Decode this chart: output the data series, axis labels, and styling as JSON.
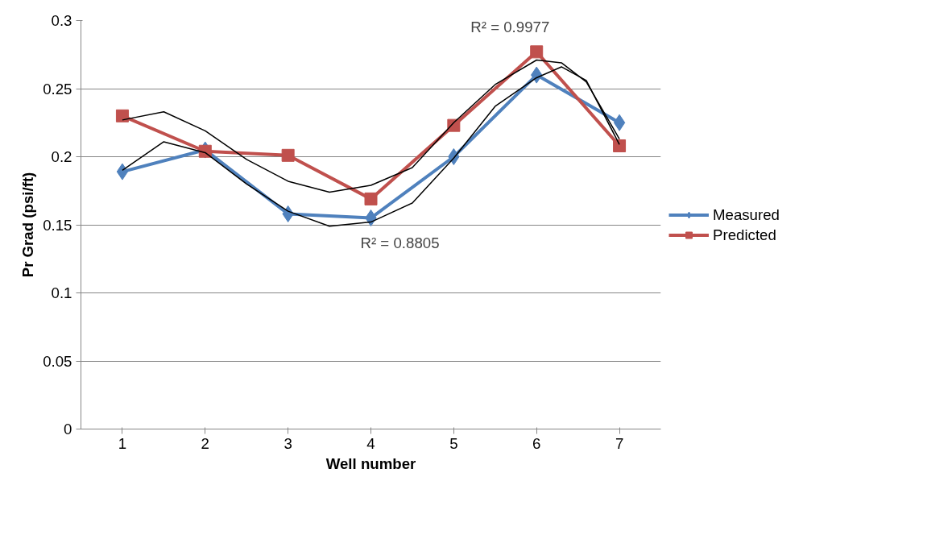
{
  "chart_data": {
    "type": "line",
    "xlabel": "Well number",
    "ylabel": "Pr Grad (psi/ft)",
    "x": [
      1,
      2,
      3,
      4,
      5,
      6,
      7
    ],
    "xlim": [
      0.5,
      7.5
    ],
    "xticks": [
      1,
      2,
      3,
      4,
      5,
      6,
      7
    ],
    "ylim": [
      0,
      0.3
    ],
    "yticks": [
      0,
      0.05,
      0.1,
      0.15,
      0.2,
      0.25,
      0.3
    ],
    "grid": "y",
    "legend": "right",
    "series": [
      {
        "name": "Measured",
        "color": "#4f81bd",
        "marker": "diamond",
        "values": [
          0.189,
          0.205,
          0.158,
          0.155,
          0.2,
          0.26,
          0.225
        ]
      },
      {
        "name": "Predicted",
        "color": "#c0504d",
        "marker": "square",
        "values": [
          0.23,
          0.204,
          0.201,
          0.169,
          0.223,
          0.277,
          0.208
        ]
      },
      {
        "type": "line",
        "color": "#000000",
        "marker": "none",
        "x": [
          1,
          1.5,
          2,
          2.5,
          3,
          3.5,
          4,
          4.5,
          5,
          5.5,
          6,
          6.3,
          6.6,
          7
        ],
        "values": [
          0.19,
          0.211,
          0.203,
          0.18,
          0.16,
          0.149,
          0.152,
          0.166,
          0.199,
          0.237,
          0.258,
          0.266,
          0.256,
          0.209
        ]
      },
      {
        "type": "line",
        "color": "#000000",
        "marker": "none",
        "x": [
          1,
          1.5,
          2,
          2.5,
          3,
          3.5,
          4,
          4.5,
          5,
          5.5,
          6,
          6.3,
          6.6,
          7
        ],
        "values": [
          0.227,
          0.233,
          0.219,
          0.198,
          0.182,
          0.174,
          0.179,
          0.192,
          0.225,
          0.253,
          0.271,
          0.269,
          0.255,
          0.213
        ]
      }
    ],
    "annotations": [
      "R² = 0.9977",
      "R² = 0.8805"
    ]
  }
}
